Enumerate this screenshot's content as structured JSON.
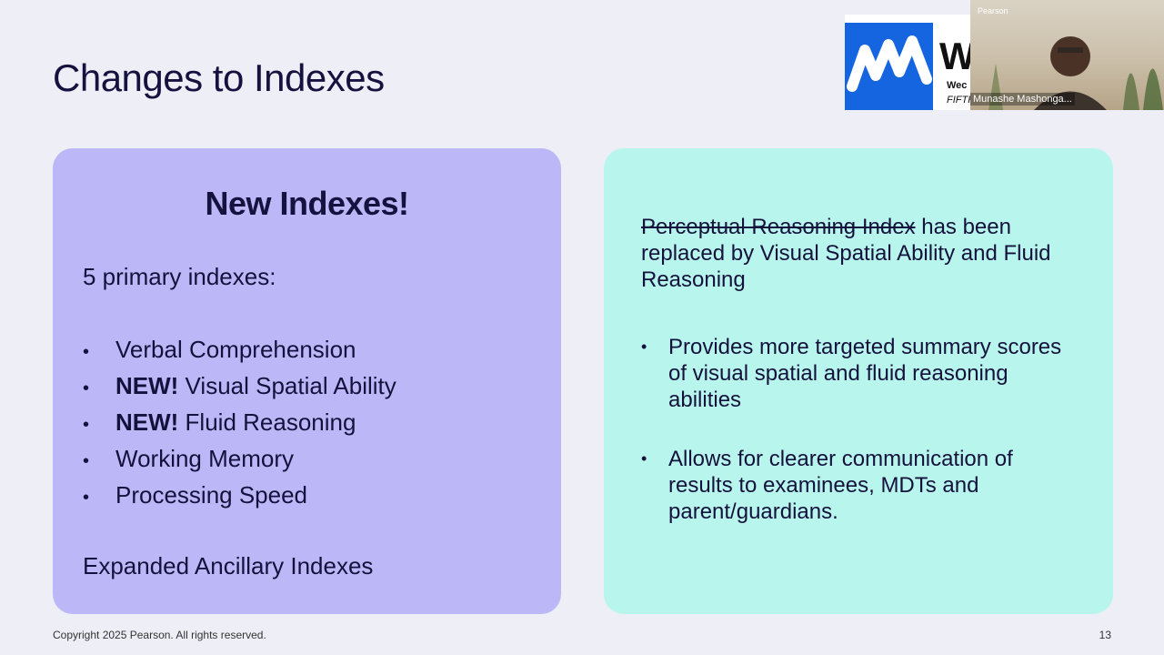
{
  "slide": {
    "title": "Changes to Indexes",
    "footer_copyright": "Copyright 2025 Pearson. All rights reserved.",
    "page_number": "13"
  },
  "left_card": {
    "heading": "New Indexes!",
    "intro": "5 primary indexes:",
    "bullets": [
      {
        "prefix": "",
        "text": "Verbal Comprehension"
      },
      {
        "prefix": "NEW!",
        "text": " Visual Spatial Ability"
      },
      {
        "prefix": "NEW!",
        "text": " Fluid Reasoning"
      },
      {
        "prefix": "",
        "text": "Working Memory"
      },
      {
        "prefix": "",
        "text": "Processing Speed"
      }
    ],
    "outro": "Expanded Ancillary Indexes"
  },
  "right_card": {
    "struck_text": "Perceptual Reasoning Index",
    "para_rest": " has been replaced by Visual Spatial Ability and Fluid Reasoning",
    "bullets": [
      "Provides more targeted summary scores of visual spatial and fluid reasoning abilities",
      "Allows for clearer communication of results to examinees, MDTs and parent/guardians."
    ]
  },
  "overlay": {
    "logo_letter": "W",
    "logo_sub1": "Wec",
    "logo_sub2": "FIFTH",
    "video_brand": "Pearson",
    "participant_name": "Munashe Mashonga..."
  },
  "colors": {
    "background": "#eeeef6",
    "left_card": "#bcb8f7",
    "right_card": "#b8f5ec",
    "text": "#15123f",
    "logo_blue": "#1565e0"
  },
  "bullet_glyph": "•"
}
